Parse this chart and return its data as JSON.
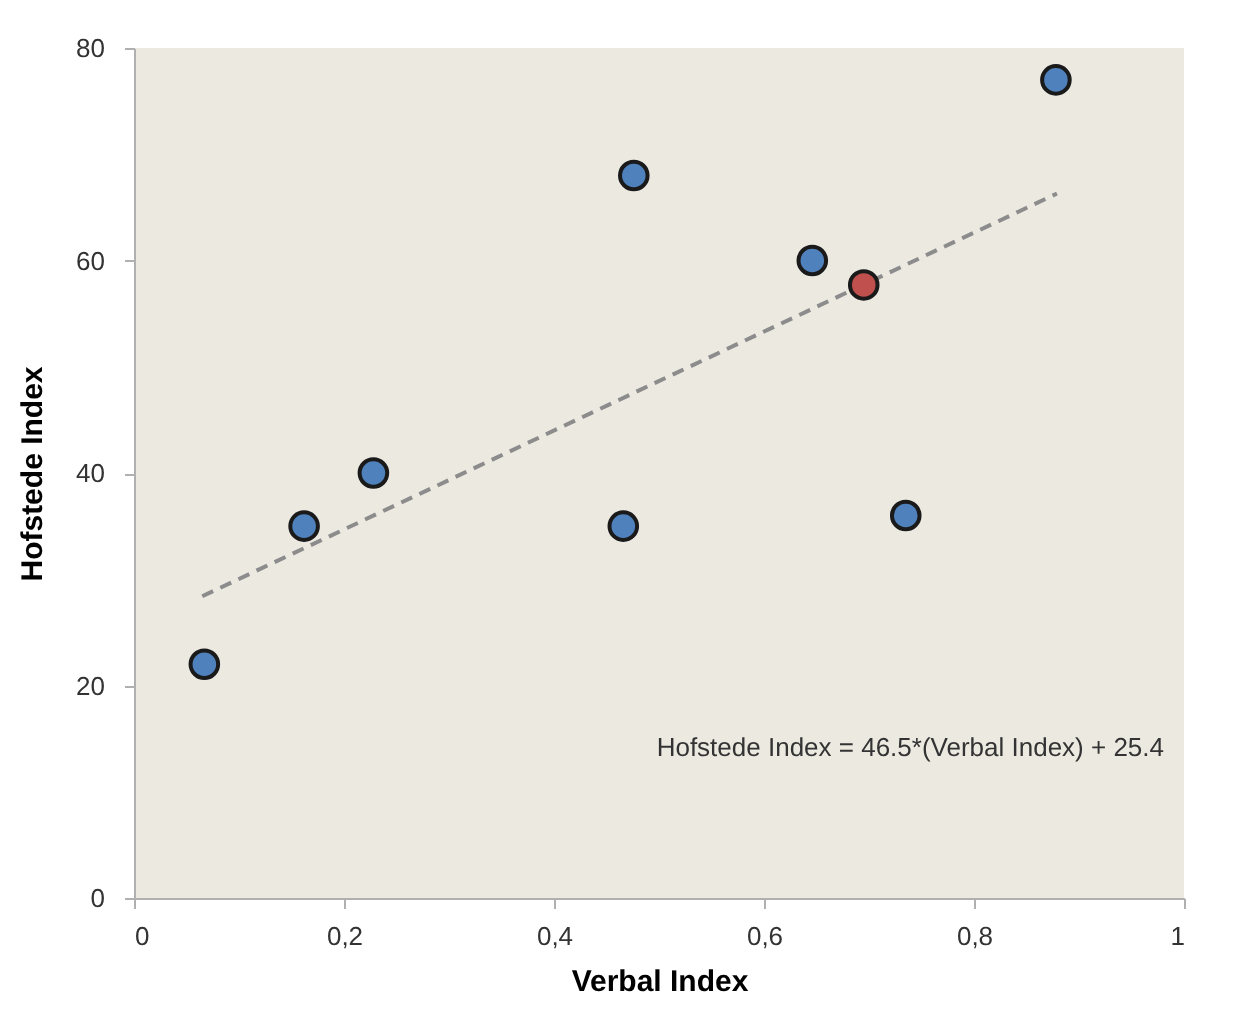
{
  "chart_data": {
    "type": "scatter",
    "xlabel": "Verbal Index",
    "ylabel": "Hofstede Index",
    "xlim": [
      0,
      1
    ],
    "xticks": [
      0,
      {
        "value": 0.2,
        "label": "0,2"
      },
      {
        "value": 0.4,
        "label": "0,4"
      },
      {
        "value": 0.6,
        "label": "0,6"
      },
      {
        "value": 0.8,
        "label": "0,8"
      },
      1
    ],
    "ylim": [
      0,
      80
    ],
    "yticks": [
      0,
      20,
      40,
      60,
      80
    ],
    "grid": false,
    "marker": "circle",
    "series": [
      {
        "color": "#4f81bd",
        "x": [
          0.067,
          0.162,
          0.228,
          0.476,
          0.466,
          0.646,
          0.735,
          0.878
        ],
        "values": [
          22,
          35,
          40,
          68,
          35,
          60,
          36,
          77
        ]
      },
      {
        "color": "#c0504d",
        "x": [
          0.695
        ],
        "values": [
          57.7
        ]
      },
      {
        "type": "line",
        "color": "#8c8c8c",
        "line_style": "dashed",
        "marker": "none",
        "x": [
          0.065,
          0.879
        ],
        "values": [
          28.4,
          66.3
        ]
      }
    ],
    "annotations": [
      "Hofstede Index = 46.5*(Verbal Index) + 25.4"
    ]
  }
}
